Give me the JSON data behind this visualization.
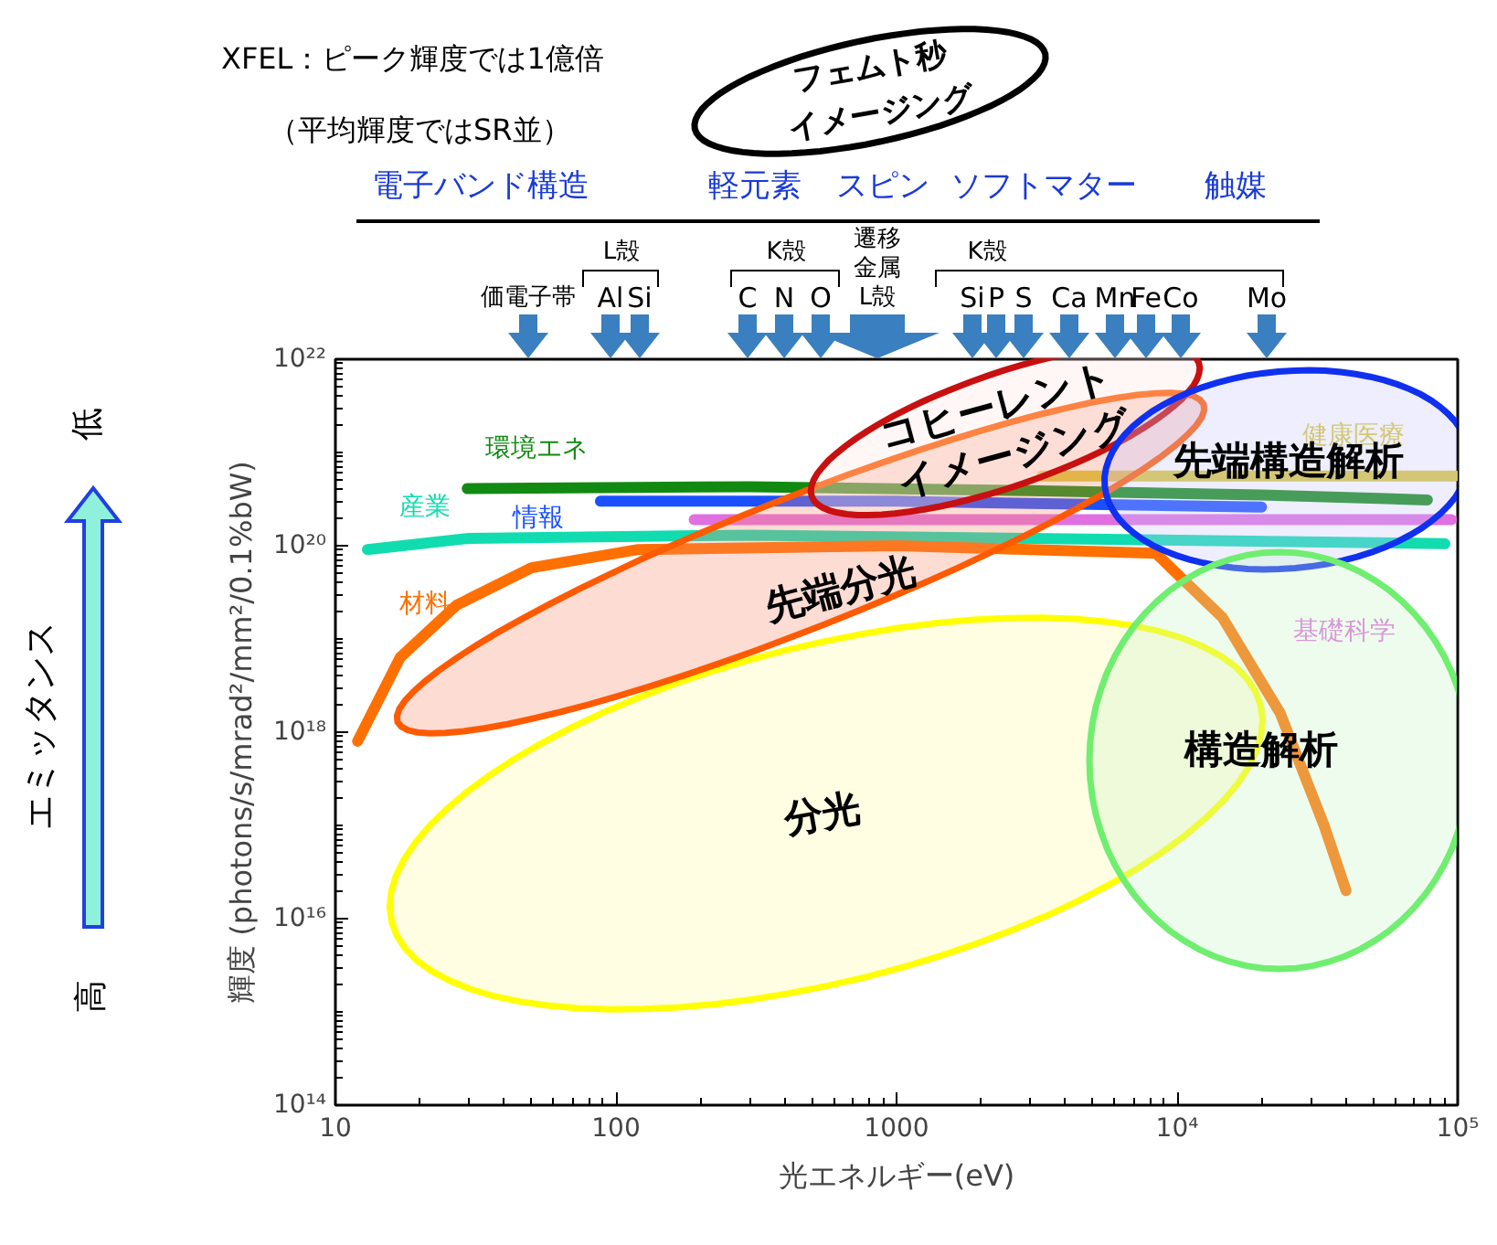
{
  "chart_data": {
    "type": "line",
    "xlabel": "光エネルギー(eV)",
    "ylabel": "輝度 (photons/s/mrad²/mm²/0.1%bW)",
    "log": "xy",
    "grid": false,
    "legend": false,
    "marker": "none",
    "line_style": "solid",
    "xlim": [
      10,
      100000
    ],
    "ylim": [
      100000000000000.0,
      1e+22
    ],
    "xticks": [
      10,
      100,
      1000,
      {
        "value": 10000,
        "label": "10⁴"
      },
      {
        "value": 100000,
        "label": "10⁵"
      }
    ],
    "yticks": [
      {
        "value": 100000000000000.0,
        "label": "10¹⁴"
      },
      {
        "value": 1e+16,
        "label": "10¹⁶"
      },
      {
        "value": 1e+18,
        "label": "10¹⁸"
      },
      {
        "value": 1e+20,
        "label": "10²⁰"
      },
      {
        "value": 1e+22,
        "label": "10²²"
      }
    ],
    "series": [
      {
        "name": "環境エネ",
        "color": "#128a12",
        "x": [
          29.5,
          300,
          3000,
          20000,
          78000
        ],
        "values": [
          4.1e+20,
          4.3e+20,
          3.9e+20,
          3.5e+20,
          3.1e+20
        ]
      },
      {
        "name": "産業",
        "color": "#10dcb0",
        "x": [
          13,
          30,
          300,
          3000,
          90000
        ],
        "values": [
          9.1e+19,
          1.2e+20,
          1.3e+20,
          1.2e+20,
          1.05e+20
        ]
      },
      {
        "name": "情報",
        "color": "#1a50ff",
        "x": [
          88,
          1000,
          20000
        ],
        "values": [
          3e+20,
          3e+20,
          2.6e+20
        ]
      },
      {
        "name": "材料",
        "color": "#ff7000",
        "x": [
          12,
          17,
          27,
          50,
          120,
          1000,
          8400,
          14500,
          23300,
          33400,
          40000
        ],
        "values": [
          8e+17,
          6.3e+18,
          2.3e+19,
          5.8e+19,
          9.1e+19,
          1e+20,
          8.3e+19,
          1.7e+19,
          1.6e+18,
          1e+17,
          2e+16
        ]
      },
      {
        "name": "健康医療",
        "color": "#d8c83a",
        "x": [
          3300,
          98000
        ],
        "values": [
          5.6e+20,
          5.6e+20
        ]
      },
      {
        "name": "基礎科学",
        "color": "#e070e0",
        "x": [
          190,
          95000
        ],
        "values": [
          1.9e+20,
          1.9e+20
        ]
      }
    ],
    "annotations": [
      "XFEL：ピーク輝度では1億倍",
      "（平均輝度ではSR並）",
      "フェムト秒",
      "イメージング",
      "電子バンド構造",
      "軽元素",
      "スピン",
      "ソフトマター",
      "触媒",
      "L殻",
      "K殻",
      "K殻",
      "エミッタンス",
      "低",
      "高",
      "価電子帯",
      "Al",
      "Si",
      "C",
      "N",
      "O",
      "遷移金属L殻",
      "Si",
      "P",
      "S",
      "Ca",
      "Mn",
      "Fe",
      "Co",
      "Mo",
      "分光",
      "先端分光",
      "コヒーレント",
      "イメージング",
      "先端構造解析",
      "構造解析"
    ]
  }
}
